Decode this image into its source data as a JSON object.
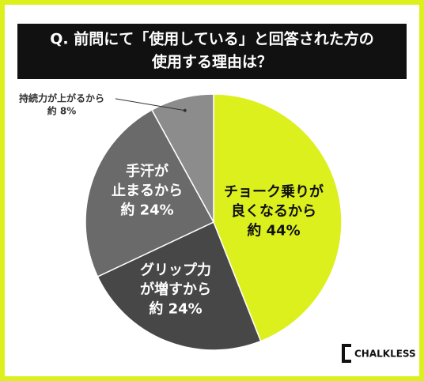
{
  "chart_data": {
    "type": "pie",
    "title": [
      "Q. 前問にて「使用している」と回答された方の",
      "使用する理由は？"
    ],
    "categories": [
      [
        "チョーク乗りが",
        "良くなるから"
      ],
      [
        "グリップ力",
        "が増すから"
      ],
      [
        "手汗が",
        "止まるから"
      ],
      [
        "持続力が上がるから"
      ]
    ],
    "values": [
      44,
      24,
      24,
      8
    ],
    "value_labels": [
      "約 44%",
      "約 24%",
      "約 24%",
      "約 8%"
    ],
    "colors": [
      "#dcf01e",
      "#474747",
      "#6a6a6a",
      "#8c8c8c"
    ],
    "brand": "CHALKLESS"
  }
}
